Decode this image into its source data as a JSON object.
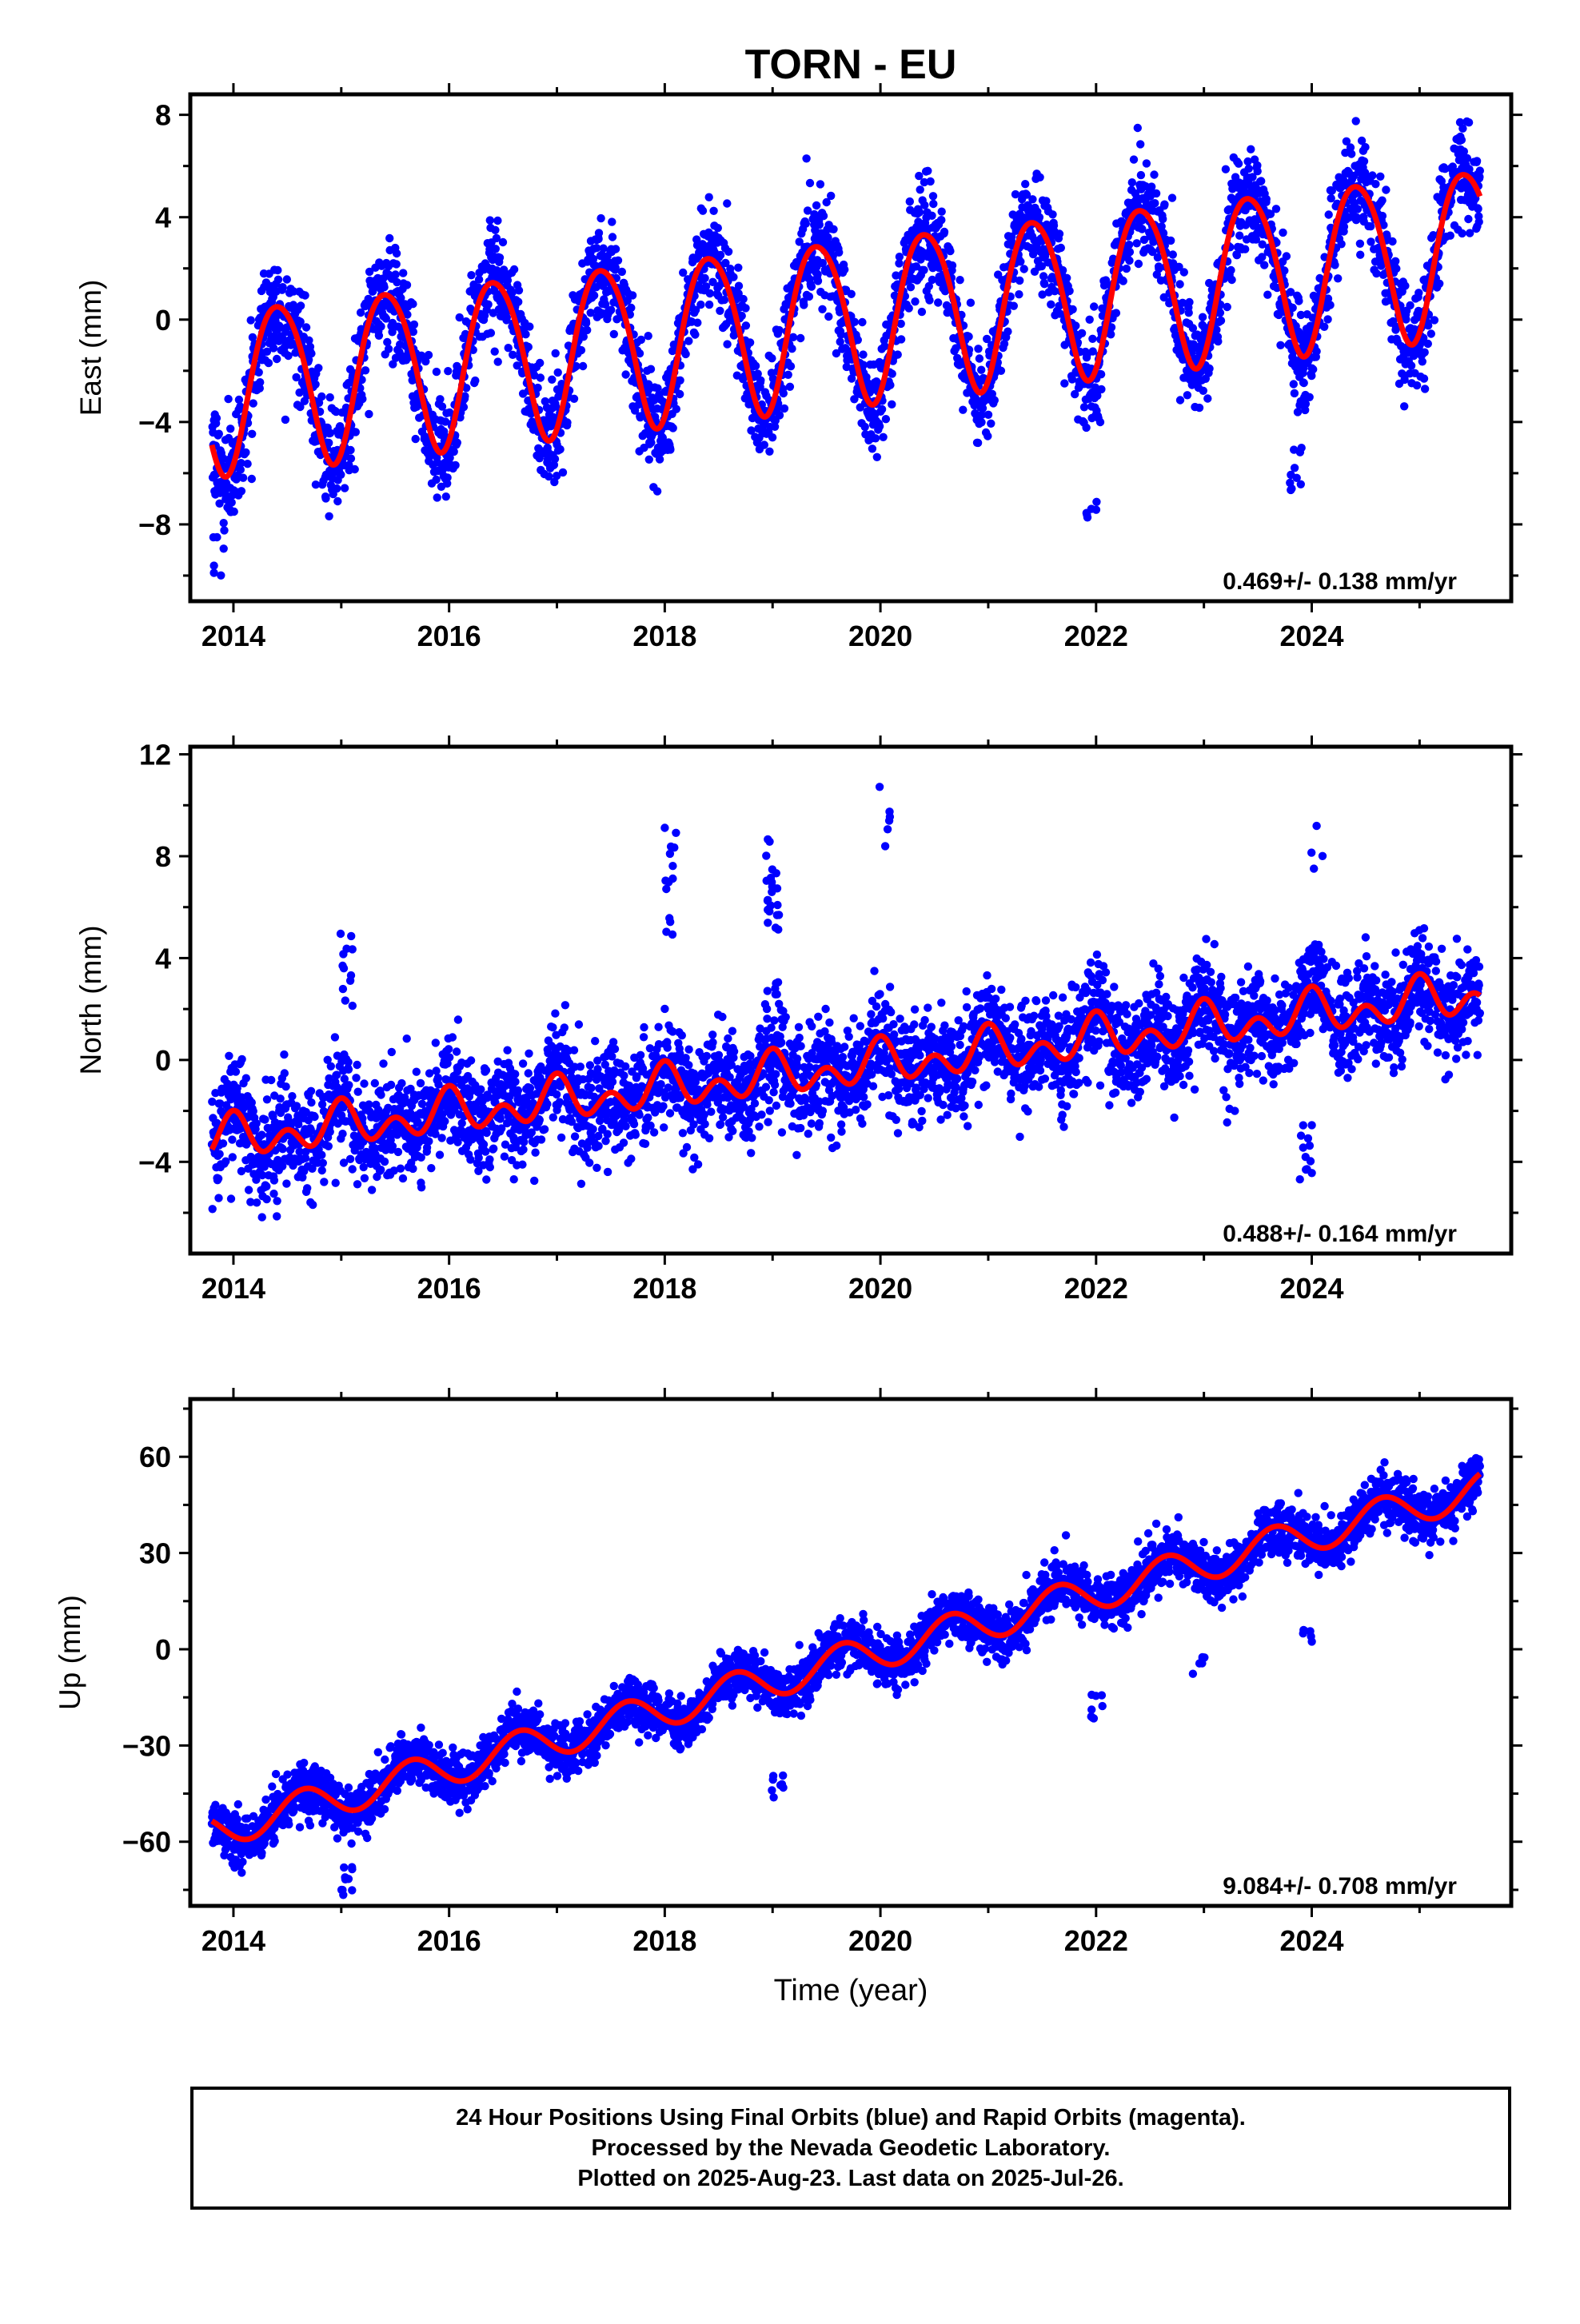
{
  "title": "TORN - EU",
  "colors": {
    "points": "#0000ff",
    "fit": "#ff0000",
    "axis": "#000000"
  },
  "x_axis_label": "Time (year)",
  "footer": {
    "line1": "24 Hour Positions Using Final Orbits (blue) and Rapid Orbits (magenta).",
    "line2": "Processed by the Nevada Geodetic Laboratory.",
    "line3": "Plotted on 2025-Aug-23. Last data on 2025-Jul-26."
  },
  "chart_data": [
    {
      "type": "scatter",
      "component": "east",
      "ylabel": "East (mm)",
      "xlim": [
        2013.6,
        2025.85
      ],
      "ylim": [
        -11,
        8.8
      ],
      "xticks": [
        2014,
        2016,
        2018,
        2020,
        2022,
        2024
      ],
      "yticks": [
        -8,
        -4,
        0,
        4,
        8
      ],
      "yticklabels": [
        "−8",
        "−4",
        "0",
        "4",
        "8"
      ],
      "annotation": "0.469+/- 0.138 mm/yr",
      "series_model": {
        "t0": 2019.5,
        "intercept": 0.0,
        "rate_mm_per_yr": 0.469,
        "annual_amp": 3.2,
        "annual_peak": 2014.42,
        "semiannual_amp": 0.35,
        "semiannual_peak": 2014.2,
        "start": 2013.8,
        "end": 2025.56,
        "scatter": 1.0
      },
      "outlier_clusters": [
        {
          "x": 2013.85,
          "y": -9.5,
          "n": 6,
          "spread": 1.0
        },
        {
          "x": 2021.95,
          "y": -7.5,
          "n": 6,
          "spread": 0.5
        },
        {
          "x": 2023.85,
          "y": -5.8,
          "n": 10,
          "spread": 1.0
        }
      ]
    },
    {
      "type": "scatter",
      "component": "north",
      "ylabel": "North (mm)",
      "xlim": [
        2013.6,
        2025.85
      ],
      "ylim": [
        -7.6,
        12.3
      ],
      "xticks": [
        2014,
        2016,
        2018,
        2020,
        2022,
        2024
      ],
      "yticks": [
        -4,
        0,
        4,
        8,
        12
      ],
      "yticklabels": [
        "−4",
        "0",
        "4",
        "8",
        "12"
      ],
      "annotation": "0.488+/- 0.164 mm/yr",
      "series_model": {
        "t0": 2019.5,
        "intercept": -0.4,
        "rate_mm_per_yr": 0.488,
        "annual_amp": 0.5,
        "annual_peak": 2015.0,
        "semiannual_amp": 0.6,
        "semiannual_peak": 2015.0,
        "start": 2013.8,
        "end": 2025.56,
        "scatter": 1.0
      },
      "outlier_clusters": [
        {
          "x": 2015.05,
          "y": 3.5,
          "n": 12,
          "spread": 1.5
        },
        {
          "x": 2018.05,
          "y": 7.0,
          "n": 14,
          "spread": 2.2
        },
        {
          "x": 2019.0,
          "y": 7.0,
          "n": 22,
          "spread": 2.0
        },
        {
          "x": 2020.05,
          "y": 9.8,
          "n": 6,
          "spread": 1.5
        },
        {
          "x": 2023.95,
          "y": -3.5,
          "n": 12,
          "spread": 1.2
        },
        {
          "x": 2024.05,
          "y": 8.0,
          "n": 4,
          "spread": 1.5
        }
      ]
    },
    {
      "type": "scatter",
      "component": "up",
      "ylabel": "Up (mm)",
      "xlim": [
        2013.6,
        2025.85
      ],
      "ylim": [
        -80,
        78
      ],
      "xticks": [
        2014,
        2016,
        2018,
        2020,
        2022,
        2024
      ],
      "yticks": [
        -60,
        -30,
        0,
        30,
        60
      ],
      "yticklabels": [
        "−60",
        "−30",
        "0",
        "30",
        "60"
      ],
      "annotation": "9.084+/- 0.708 mm/yr",
      "series_model": {
        "t0": 2019.5,
        "intercept": -5.0,
        "rate_mm_per_yr": 9.084,
        "annual_amp": 5.5,
        "annual_peak": 2014.65,
        "semiannual_amp": 0.0,
        "semiannual_peak": 2014.65,
        "start": 2013.8,
        "end": 2025.56,
        "scatter": 4.0
      },
      "outlier_clusters": [
        {
          "x": 2015.05,
          "y": -72,
          "n": 10,
          "spread": 5
        },
        {
          "x": 2019.05,
          "y": -42,
          "n": 8,
          "spread": 5
        },
        {
          "x": 2022.0,
          "y": -18,
          "n": 8,
          "spread": 4
        },
        {
          "x": 2022.95,
          "y": -5,
          "n": 6,
          "spread": 4
        },
        {
          "x": 2023.95,
          "y": 3,
          "n": 6,
          "spread": 3
        }
      ]
    }
  ]
}
